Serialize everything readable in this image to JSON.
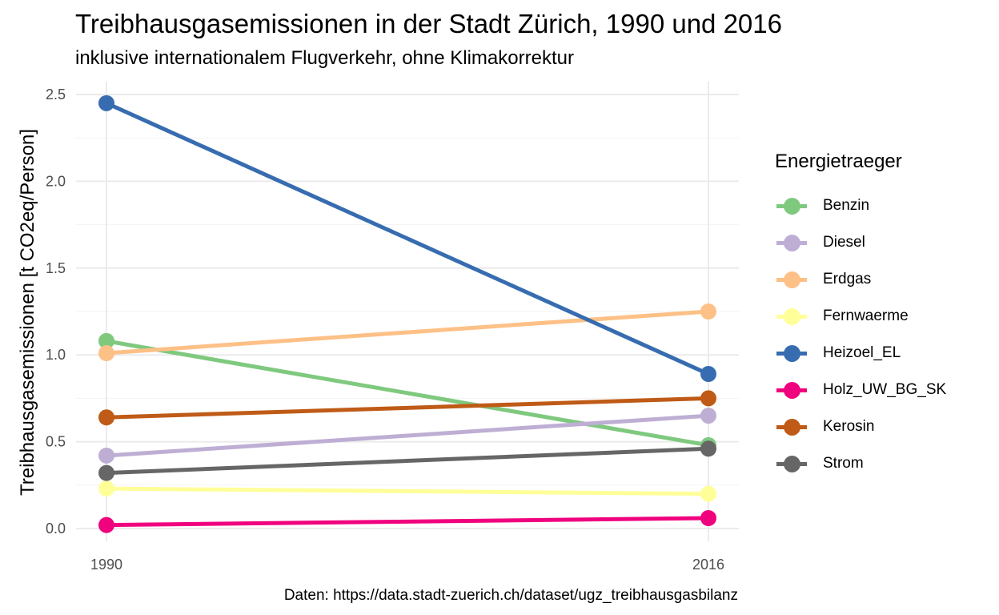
{
  "chart_data": {
    "type": "line",
    "title": "Treibhausgasemissionen in der Stadt Zürich, 1990 und 2016",
    "subtitle": "inklusive internationalem Flugverkehr, ohne Klimakorrektur",
    "xlabel": "",
    "ylabel": "Treibhausgasemissionen [t CO2eq/Person]",
    "caption": "Daten: https://data.stadt-zuerich.ch/dataset/ugz_treibhausgasbilanz",
    "x": [
      "1990",
      "2016"
    ],
    "ylim": [
      0,
      2.5
    ],
    "yticks": [
      "0.0",
      "0.5",
      "1.0",
      "1.5",
      "2.0",
      "2.5"
    ],
    "grid": true,
    "legend_title": "Energietraeger",
    "legend_position": "right",
    "series": [
      {
        "name": "Benzin",
        "color": "#7fc97f",
        "values": [
          1.08,
          0.48
        ]
      },
      {
        "name": "Diesel",
        "color": "#beaed4",
        "values": [
          0.42,
          0.65
        ]
      },
      {
        "name": "Erdgas",
        "color": "#fdc086",
        "values": [
          1.01,
          1.25
        ]
      },
      {
        "name": "Fernwaerme",
        "color": "#ffff99",
        "values": [
          0.23,
          0.2
        ]
      },
      {
        "name": "Heizoel_EL",
        "color": "#386cb0",
        "values": [
          2.45,
          0.89
        ]
      },
      {
        "name": "Holz_UW_BG_SK",
        "color": "#f0027f",
        "values": [
          0.02,
          0.06
        ]
      },
      {
        "name": "Kerosin",
        "color": "#bf5b17",
        "values": [
          0.64,
          0.75
        ]
      },
      {
        "name": "Strom",
        "color": "#666666",
        "values": [
          0.32,
          0.46
        ]
      }
    ]
  }
}
